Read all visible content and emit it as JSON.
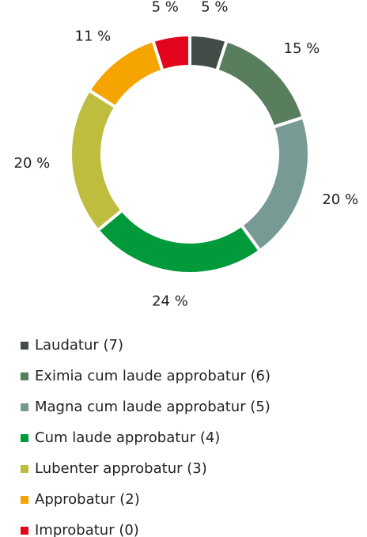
{
  "chart_data": {
    "type": "donut",
    "categories": [
      "Laudatur (7)",
      "Eximia cum laude approbatur (6)",
      "Magna cum laude approbatur (5)",
      "Cum laude approbatur (4)",
      "Lubenter approbatur (3)",
      "Approbatur (2)",
      "Improbatur (0)"
    ],
    "values": [
      5,
      15,
      20,
      24,
      20,
      11,
      5
    ],
    "value_labels": [
      "5 %",
      "15 %",
      "20 %",
      "24 %",
      "20 %",
      "11 %",
      "5 %"
    ],
    "colors": [
      "#434c47",
      "#587e5d",
      "#779b94",
      "#009a3a",
      "#bfbd3e",
      "#f5a400",
      "#e3051b"
    ]
  }
}
